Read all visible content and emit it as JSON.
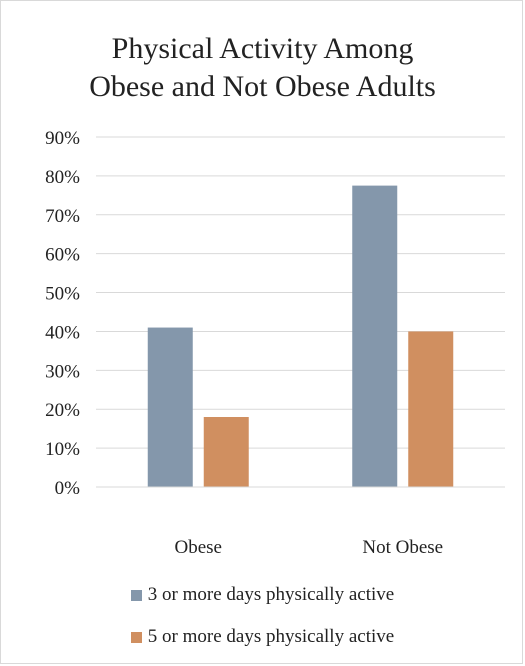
{
  "chart_data": {
    "type": "bar",
    "title_lines": [
      "Physical Activity Among",
      "Obese and Not Obese Adults"
    ],
    "categories": [
      "Obese",
      "Not Obese"
    ],
    "series": [
      {
        "name": "3 or more days physically active",
        "values": [
          41,
          77.5
        ],
        "color": "#8497ab"
      },
      {
        "name": "5 or more days physically active",
        "values": [
          18,
          40
        ],
        "color": "#d08f60"
      }
    ],
    "y_ticks": [
      "0%",
      "10%",
      "20%",
      "30%",
      "40%",
      "50%",
      "60%",
      "70%",
      "80%",
      "90%"
    ],
    "ylim": [
      0,
      90
    ],
    "grid": true,
    "legend_position": "bottom"
  }
}
